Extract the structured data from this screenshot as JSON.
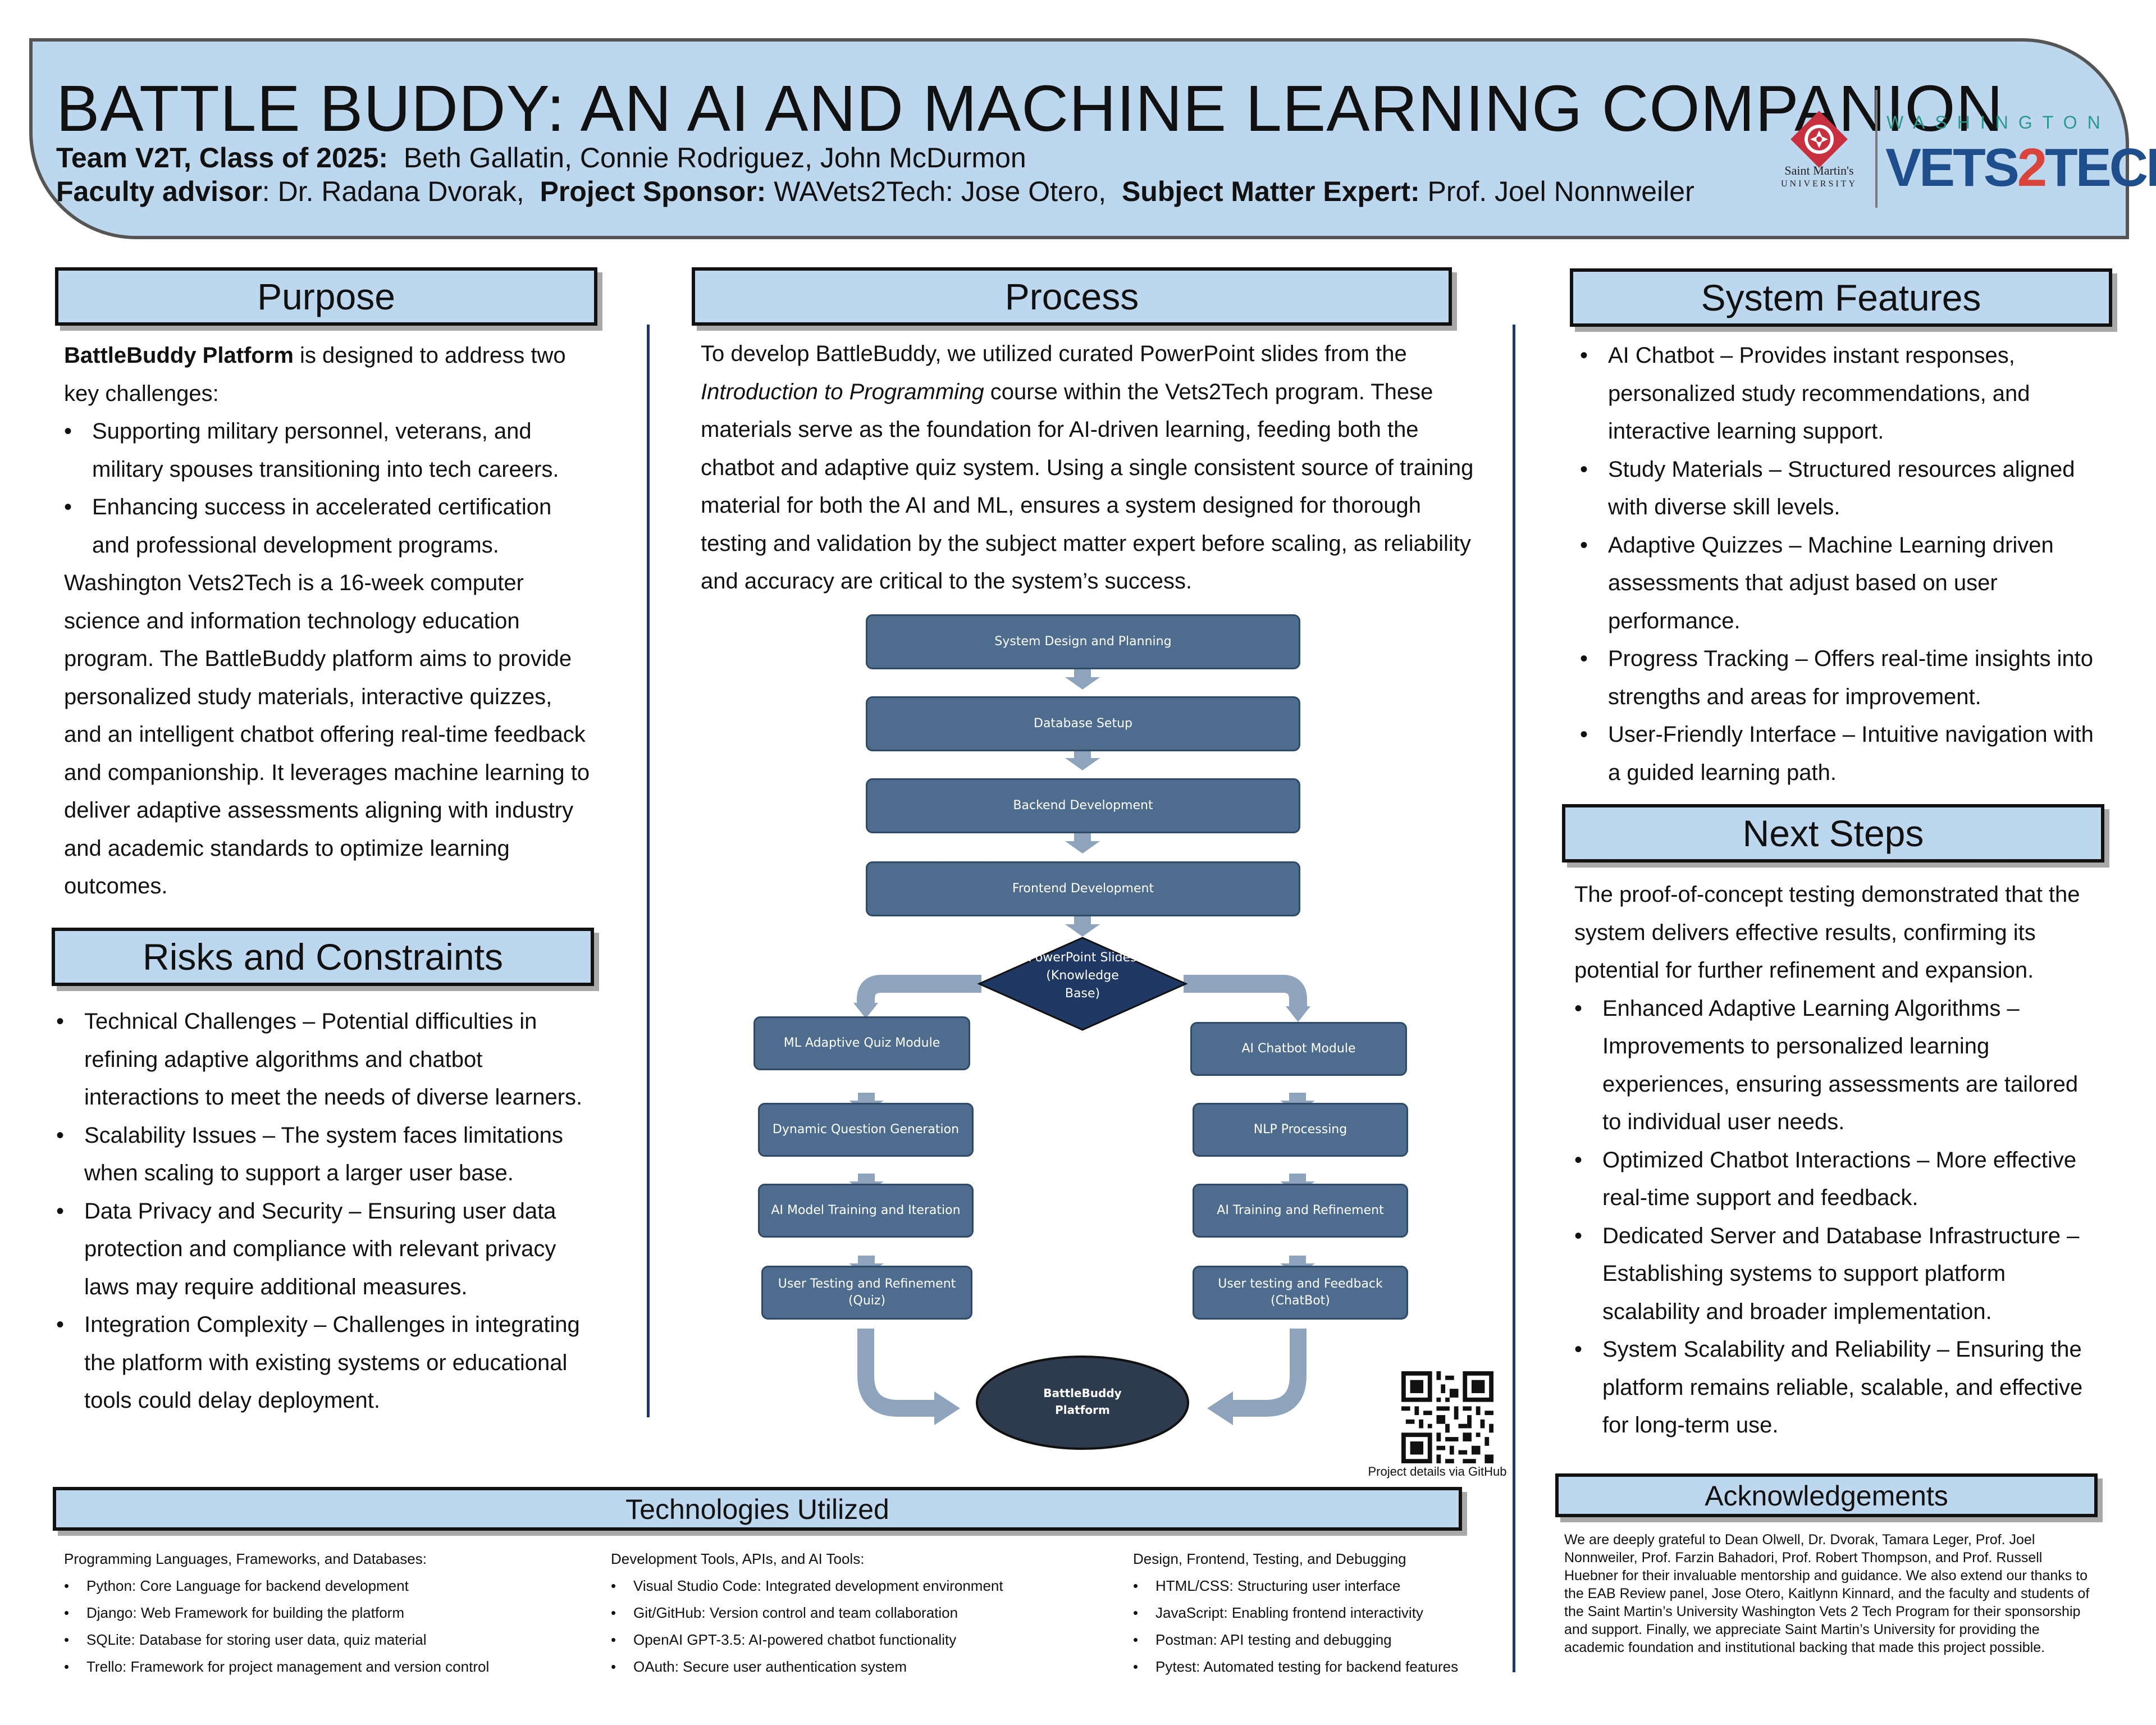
{
  "header": {
    "title": "BATTLE BUDDY: AN AI AND MACHINE LEARNING COMPANION",
    "team_label": "Team V2T, Class of 2025:",
    "team_members": "Beth Gallatin, Connie Rodriguez, John McDurmon",
    "advisor_label": "Faculty advisor",
    "advisor_name": ": Dr. Radana Dvorak,",
    "sponsor_label": "Project Sponsor:",
    "sponsor_name": "WAVets2Tech: Jose Otero,",
    "sme_label": "Subject Matter Expert:",
    "sme_name": "Prof. Joel Nonnweiler"
  },
  "logos": {
    "smu_name": "Saint Martin's",
    "smu_sub": "UNIVERSITY",
    "wa": "WASHINGTON",
    "v2t_a": "VETS",
    "v2t_b": "2",
    "v2t_c": "TECH"
  },
  "purpose": {
    "heading": "Purpose",
    "intro_bold": "BattleBuddy Platform",
    "intro_rest": " is designed to address two key challenges:",
    "bullets": [
      "Supporting military personnel, veterans, and military spouses transitioning into tech careers.",
      "Enhancing success in accelerated certification and professional development programs."
    ],
    "paragraph": "Washington Vets2Tech is a 16-week computer science and information technology education program. The BattleBuddy platform aims to provide personalized study materials, interactive quizzes, and an intelligent chatbot offering real-time feedback and companionship. It leverages machine learning to deliver adaptive assessments aligning with industry and academic standards to optimize learning outcomes."
  },
  "risks": {
    "heading": "Risks and Constraints",
    "bullets": [
      "Technical Challenges – Potential difficulties in refining adaptive algorithms and chatbot interactions to meet the needs of diverse learners.",
      "Scalability Issues – The system faces limitations when scaling to support a larger user base.",
      "Data Privacy and Security – Ensuring user data protection and compliance with relevant privacy laws may require additional measures.",
      "Integration Complexity – Challenges in integrating the platform with existing systems or educational tools could delay deployment."
    ]
  },
  "process": {
    "heading": "Process",
    "para_a": "To develop BattleBuddy, we utilized curated PowerPoint slides from the ",
    "para_italic": "Introduction to Programming",
    "para_b": " course within the Vets2Tech program. These materials serve as the foundation for AI-driven learning, feeding both the chatbot and adaptive quiz system. Using a single consistent source of training material for both the AI and ML, ensures a system designed for thorough testing and validation by the subject matter expert before scaling, as reliability and accuracy are critical to the system’s success.",
    "flow_main": [
      "System Design and Planning",
      "Database Setup",
      "Backend Development",
      "Frontend Development"
    ],
    "diamond": "PowerPoint Slides (Knowledge Base)",
    "flow_left": [
      "ML Adaptive Quiz Module",
      "Dynamic Question Generation",
      "AI Model Training and Iteration",
      "User Testing and Refinement (Quiz)"
    ],
    "flow_right": [
      "AI Chatbot Module",
      "NLP Processing",
      "AI Training and Refinement",
      "User testing and Feedback (ChatBot)"
    ],
    "final": "BattleBuddy Platform",
    "qr_caption": "Project details via GitHub"
  },
  "features": {
    "heading": "System Features",
    "bullets": [
      "AI Chatbot – Provides instant responses, personalized study recommendations, and interactive learning support.",
      "Study Materials – Structured resources aligned with diverse skill levels.",
      "Adaptive Quizzes – Machine Learning driven assessments that adjust based on user performance.",
      "Progress Tracking – Offers real-time insights into strengths and areas for improvement.",
      "User-Friendly Interface – Intuitive navigation with a guided learning path."
    ]
  },
  "next_steps": {
    "heading": "Next Steps",
    "intro": "The proof-of-concept testing demonstrated that the system delivers effective results, confirming its potential for further refinement and expansion.",
    "bullets": [
      "Enhanced Adaptive Learning Algorithms – Improvements to personalized learning experiences, ensuring assessments are tailored to individual user needs.",
      "Optimized Chatbot Interactions – More effective real-time support and feedback.",
      "Dedicated Server and Database Infrastructure – Establishing systems to support platform scalability and broader implementation.",
      "System Scalability and Reliability – Ensuring the platform remains reliable, scalable, and effective for long-term use."
    ]
  },
  "technologies": {
    "heading": "Technologies Utilized",
    "columns": [
      {
        "title": "Programming Languages, Frameworks, and Databases:",
        "items": [
          "Python: Core Language for backend development",
          "Django: Web Framework for building the platform",
          "SQLite: Database for storing user data, quiz material",
          "Trello: Framework for project management and version control"
        ]
      },
      {
        "title": "Development Tools, APIs, and AI Tools:",
        "items": [
          "Visual Studio Code: Integrated development environment",
          "Git/GitHub: Version control and team collaboration",
          "OpenAI GPT-3.5: AI-powered chatbot functionality",
          "OAuth: Secure user authentication system"
        ]
      },
      {
        "title": "Design, Frontend, Testing, and Debugging",
        "items": [
          "HTML/CSS: Structuring user interface",
          "JavaScript: Enabling frontend interactivity",
          "Postman: API testing and debugging",
          "Pytest: Automated testing for backend features"
        ]
      }
    ]
  },
  "acknowledgements": {
    "heading": "Acknowledgements",
    "text": "We are deeply grateful to Dean Olwell, Dr. Dvorak, Tamara Leger, Prof. Joel Nonnweiler, Prof. Farzin Bahadori, Prof. Robert Thompson, and Prof. Russell Huebner for their invaluable mentorship and guidance. We also extend our thanks to the EAB Review panel, Jose Otero, Kaitlynn Kinnard, and the faculty and students of the Saint Martin’s University Washington Vets 2 Tech Program for their sponsorship and support. Finally, we appreciate Saint Martin’s University for providing the academic foundation and institutional backing that made this project possible."
  },
  "colors": {
    "header_bg": "#bdd7ee",
    "flow_box": "#4e6d8e",
    "flow_dark": "#1f3864",
    "arrow": "#8ea4bd",
    "final_oval": "#2e3b4e"
  }
}
